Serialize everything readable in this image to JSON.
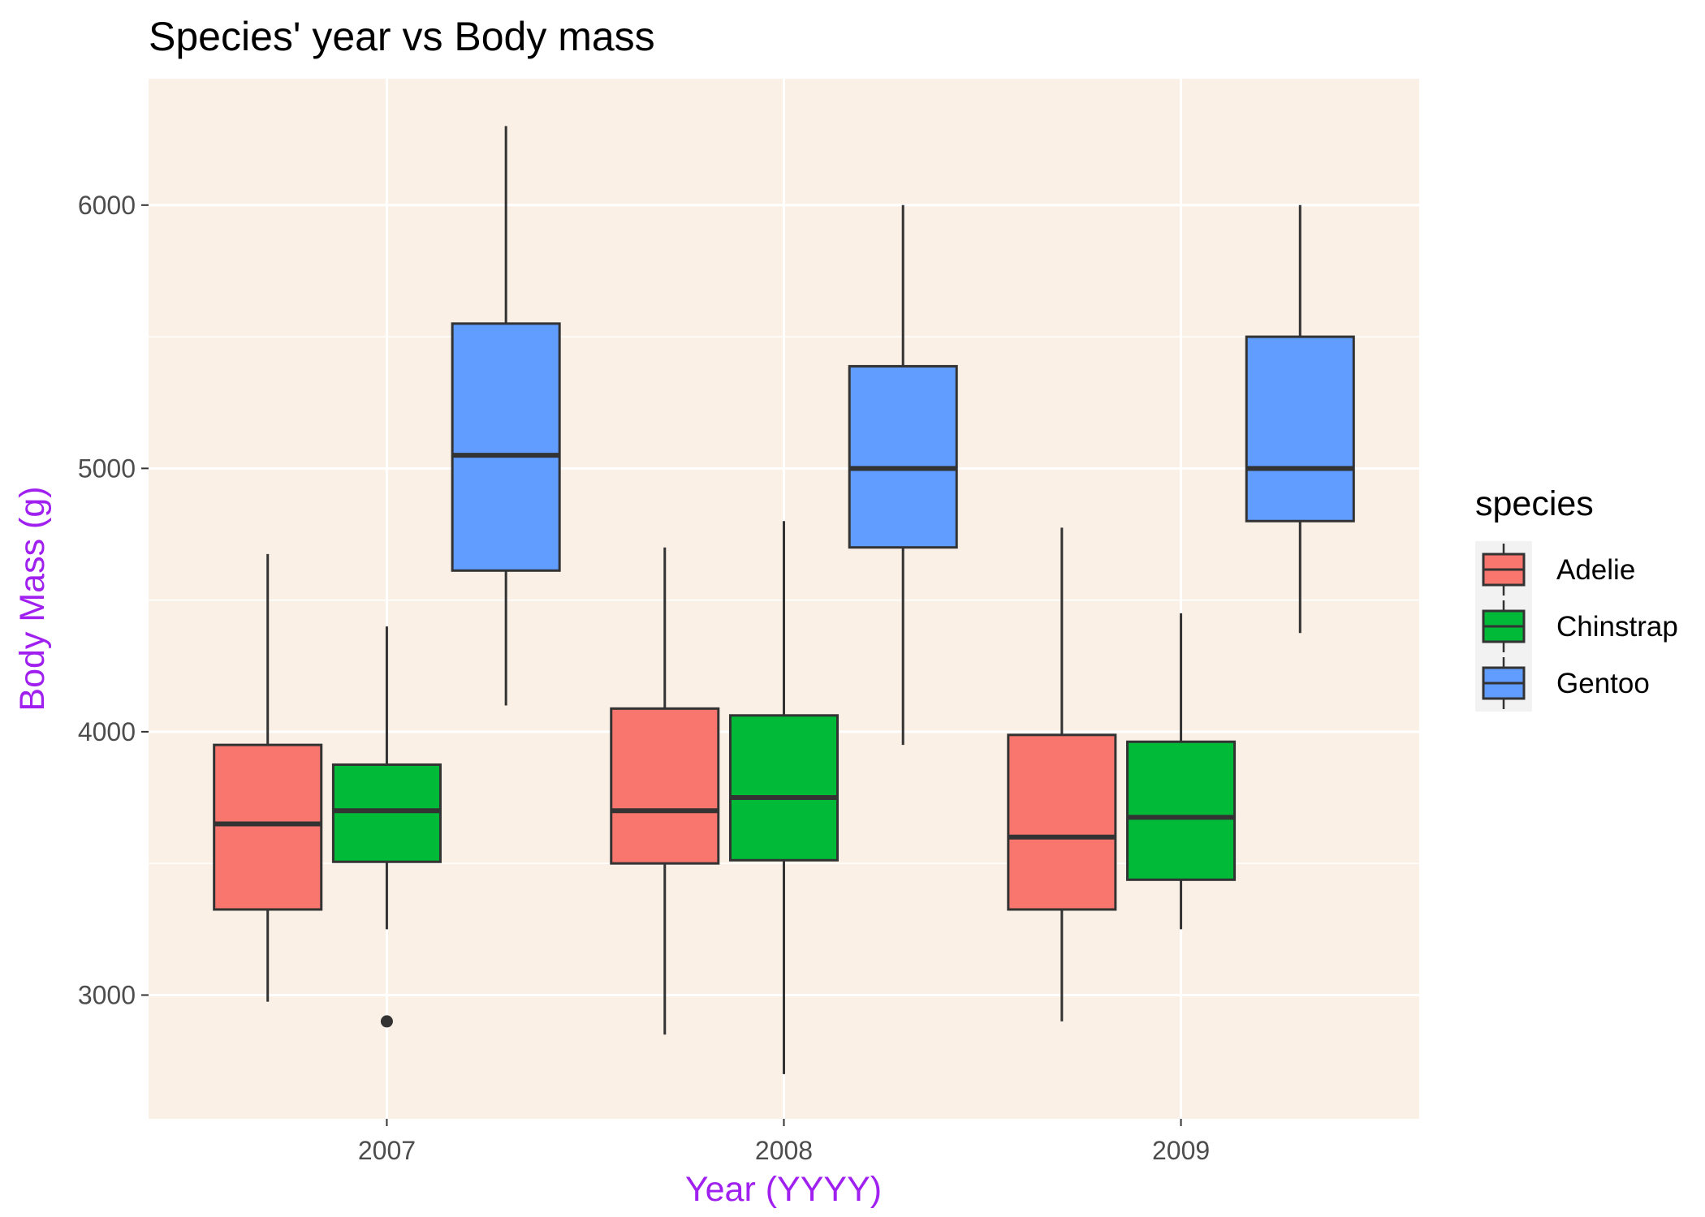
{
  "chart_data": {
    "type": "boxplot",
    "title": "Species' year vs Body mass",
    "xlabel": "Year (YYYY)",
    "ylabel": "Body Mass (g)",
    "categories": [
      "2007",
      "2008",
      "2009"
    ],
    "ylim": [
      2530,
      6480
    ],
    "yticks": [
      3000,
      4000,
      5000,
      6000
    ],
    "grid": true,
    "legend": {
      "title": "species",
      "position": "right"
    },
    "colors": {
      "panel_bg": "#FAF0E6",
      "grid": "#FFFFFF",
      "axis_title": "#A020F0",
      "box_stroke": "#333333"
    },
    "series": [
      {
        "name": "Adelie",
        "color": "#F8766D",
        "boxes": [
          {
            "category": "2007",
            "min": 2975,
            "q1": 3325,
            "median": 3650,
            "q3": 3950,
            "max": 4675,
            "outliers": []
          },
          {
            "category": "2008",
            "min": 2850,
            "q1": 3500,
            "median": 3700,
            "q3": 4088,
            "max": 4700,
            "outliers": []
          },
          {
            "category": "2009",
            "min": 2900,
            "q1": 3325,
            "median": 3600,
            "q3": 3988,
            "max": 4775,
            "outliers": []
          }
        ]
      },
      {
        "name": "Chinstrap",
        "color": "#00BA38",
        "boxes": [
          {
            "category": "2007",
            "min": 3250,
            "q1": 3506,
            "median": 3700,
            "q3": 3875,
            "max": 4400,
            "outliers": [
              2900
            ]
          },
          {
            "category": "2008",
            "min": 2700,
            "q1": 3512,
            "median": 3750,
            "q3": 4062,
            "max": 4800,
            "outliers": []
          },
          {
            "category": "2009",
            "min": 3250,
            "q1": 3438,
            "median": 3675,
            "q3": 3962,
            "max": 4450,
            "outliers": []
          }
        ]
      },
      {
        "name": "Gentoo",
        "color": "#619CFF",
        "boxes": [
          {
            "category": "2007",
            "min": 4100,
            "q1": 4612,
            "median": 5050,
            "q3": 5550,
            "max": 6300,
            "outliers": []
          },
          {
            "category": "2008",
            "min": 3950,
            "q1": 4700,
            "median": 5000,
            "q3": 5388,
            "max": 6000,
            "outliers": []
          },
          {
            "category": "2009",
            "min": 4375,
            "q1": 4800,
            "median": 5000,
            "q3": 5500,
            "max": 6000,
            "outliers": []
          }
        ]
      }
    ]
  }
}
